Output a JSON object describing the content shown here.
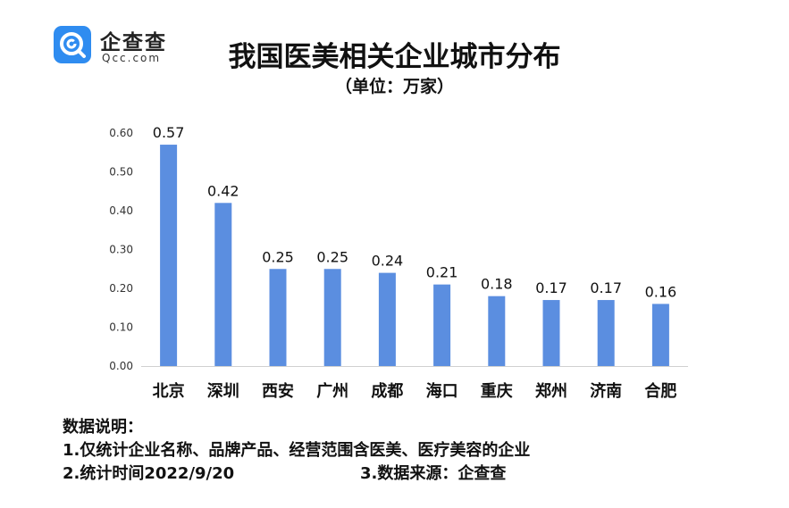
{
  "logo": {
    "name": "企查查",
    "domain": "Qcc.com"
  },
  "chart_data": {
    "type": "bar",
    "title": "我国医美相关企业城市分布",
    "subtitle": "（单位：万家）",
    "categories": [
      "北京",
      "深圳",
      "西安",
      "广州",
      "成都",
      "海口",
      "重庆",
      "郑州",
      "济南",
      "合肥"
    ],
    "values": [
      0.57,
      0.42,
      0.25,
      0.25,
      0.24,
      0.21,
      0.18,
      0.17,
      0.17,
      0.16
    ],
    "data_labels": [
      "0.57",
      "0.42",
      "0.25",
      "0.25",
      "0.24",
      "0.21",
      "0.18",
      "0.17",
      "0.17",
      "0.16"
    ],
    "ylim": [
      0,
      0.6
    ],
    "yticks": [
      "0.00",
      "0.10",
      "0.20",
      "0.30",
      "0.40",
      "0.50",
      "0.60"
    ],
    "grid": false,
    "bar_color": "#5b8ee0"
  },
  "notes": {
    "heading": "数据说明：",
    "line1": "1.仅统计企业名称、品牌产品、经营范围含医美、医疗美容的企业",
    "line2_left": "2.统计时间2022/9/20",
    "line2_right": "3.数据来源：企查查"
  }
}
